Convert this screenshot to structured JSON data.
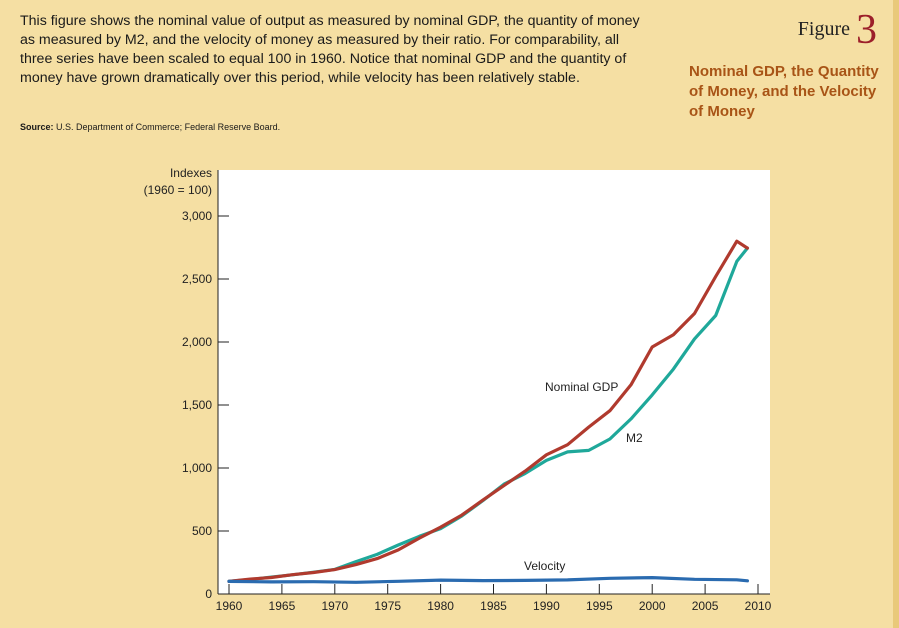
{
  "caption": "This figure shows the nominal value of output as measured by nominal GDP, the quantity of money as measured by M2, and the velocity of money as measured by their ratio. For comparability, all three series have been scaled to equal 100 in 1960. Notice that nominal GDP and the quantity of money have grown dramatically over this period, while velocity has been relatively stable.",
  "source_label": "Source:",
  "source_text": "U.S. Department of Commerce; Federal Reserve Board.",
  "figure_word": "Figure",
  "figure_number": "3",
  "figure_title": "Nominal GDP, the Quantity of Money, and the Velocity of Money",
  "colors": {
    "gdp": "#b03a2e",
    "m2": "#1fa89a",
    "velocity": "#2a6bb0",
    "plot_bg": "#ffffff",
    "title": "#a85416"
  },
  "chart_data": {
    "type": "line",
    "ylabel_line1": "Indexes",
    "ylabel_line2": "(1960 = 100)",
    "xlim": [
      1960,
      2010
    ],
    "ylim": [
      0,
      3000
    ],
    "x_ticks": [
      "1960",
      "1965",
      "1970",
      "1975",
      "1980",
      "1985",
      "1990",
      "1995",
      "2000",
      "2005",
      "2010"
    ],
    "y_ticks": [
      "0",
      "500",
      "1,000",
      "1,500",
      "2,000",
      "2,500",
      "3,000"
    ],
    "grid": false,
    "series": [
      {
        "name": "Nominal GDP",
        "key": "gdp",
        "x": [
          1960,
          1962,
          1964,
          1966,
          1968,
          1970,
          1972,
          1974,
          1976,
          1978,
          1980,
          1982,
          1984,
          1986,
          1988,
          1990,
          1992,
          1994,
          1996,
          1998,
          2000,
          2002,
          2004,
          2006,
          2008,
          2009
        ],
        "values": [
          100,
          118,
          131,
          153,
          171,
          194,
          233,
          281,
          350,
          444,
          530,
          626,
          745,
          862,
          975,
          1105,
          1185,
          1325,
          1455,
          1660,
          1960,
          2058,
          2226,
          2520,
          2800,
          2745
        ]
      },
      {
        "name": "M2",
        "key": "m2",
        "x": [
          1960,
          1962,
          1964,
          1966,
          1968,
          1970,
          1972,
          1974,
          1976,
          1978,
          1980,
          1982,
          1984,
          1986,
          1988,
          1990,
          1992,
          1994,
          1996,
          1998,
          2000,
          2002,
          2004,
          2006,
          2008,
          2009
        ],
        "values": [
          100,
          115,
          134,
          152,
          173,
          195,
          257,
          314,
          389,
          458,
          519,
          619,
          741,
          872,
          957,
          1060,
          1128,
          1140,
          1230,
          1390,
          1580,
          1785,
          2025,
          2210,
          2640,
          2745
        ]
      },
      {
        "name": "Velocity",
        "key": "velocity",
        "x": [
          1960,
          1964,
          1968,
          1972,
          1976,
          1980,
          1984,
          1988,
          1992,
          1996,
          2000,
          2004,
          2008,
          2009
        ],
        "values": [
          100,
          96,
          98,
          93,
          101,
          110,
          106,
          108,
          112,
          125,
          130,
          117,
          113,
          105
        ]
      }
    ]
  }
}
